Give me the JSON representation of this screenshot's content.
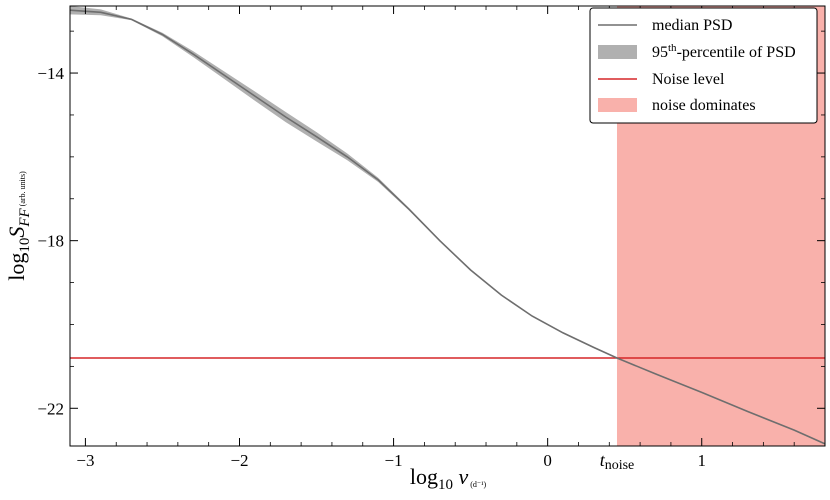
{
  "chart_data": {
    "type": "line",
    "title": "",
    "xlabel": {
      "main": "log",
      "sub": "10",
      "var": "ν",
      "unit": "(d⁻¹)"
    },
    "ylabel": {
      "main": "log",
      "sub": "10",
      "var": "S",
      "var_sub": "FF",
      "unit": "(arb. units)"
    },
    "xlim": [
      -3.1,
      1.8
    ],
    "ylim": [
      -22.9,
      -12.4
    ],
    "x_ticks": [
      {
        "value": -3,
        "label": "−3"
      },
      {
        "value": -2,
        "label": "−2"
      },
      {
        "value": -1,
        "label": "−1"
      },
      {
        "value": 0,
        "label": "0"
      },
      {
        "value": 1,
        "label": "1"
      }
    ],
    "x_special_tick": {
      "value": 0.45,
      "label_main": "t",
      "label_sub": "noise"
    },
    "y_ticks": [
      {
        "value": -14,
        "label": "−14"
      },
      {
        "value": -18,
        "label": "−18"
      },
      {
        "value": -22,
        "label": "−22"
      }
    ],
    "grid": false,
    "legend_position": "top-right",
    "legend": [
      {
        "key": "median",
        "label": "median PSD"
      },
      {
        "key": "percentile",
        "label_main": "95",
        "label_sup": "th",
        "label_rest": "-percentile of PSD"
      },
      {
        "key": "noise_level",
        "label": "Noise level"
      },
      {
        "key": "noise_region",
        "label": "noise dominates"
      }
    ],
    "colors": {
      "median": "#6e6e6e",
      "band": "#b0b0b0",
      "noise_line": "#d62728",
      "noise_region": "#f9b1ab"
    },
    "series": [
      {
        "name": "median PSD",
        "x": [
          -3.1,
          -2.9,
          -2.7,
          -2.5,
          -2.3,
          -2.1,
          -1.9,
          -1.7,
          -1.5,
          -1.3,
          -1.1,
          -0.9,
          -0.7,
          -0.5,
          -0.3,
          -0.1,
          0.1,
          0.3,
          0.45,
          0.7,
          1.0,
          1.3,
          1.6,
          1.8
        ],
        "y": [
          -12.5,
          -12.55,
          -12.72,
          -13.08,
          -13.55,
          -14.05,
          -14.55,
          -15.05,
          -15.52,
          -16.0,
          -16.55,
          -17.25,
          -18.0,
          -18.7,
          -19.3,
          -19.8,
          -20.2,
          -20.55,
          -20.8,
          -21.18,
          -21.62,
          -22.08,
          -22.52,
          -22.85
        ]
      },
      {
        "name": "95th-percentile of PSD",
        "x": [
          -3.1,
          -2.9,
          -2.7,
          -2.5,
          -2.3,
          -2.1,
          -1.9,
          -1.7,
          -1.5,
          -1.3,
          -1.1,
          -0.9,
          -0.7,
          -0.5
        ],
        "y_low": [
          -12.6,
          -12.62,
          -12.74,
          -13.12,
          -13.62,
          -14.14,
          -14.66,
          -15.17,
          -15.63,
          -16.08,
          -16.6,
          -17.28,
          -18.02,
          -18.71
        ],
        "y_high": [
          -12.4,
          -12.48,
          -12.7,
          -13.04,
          -13.48,
          -13.96,
          -14.44,
          -14.93,
          -15.41,
          -15.92,
          -16.5,
          -17.22,
          -17.98,
          -18.69
        ]
      }
    ],
    "noise_level": -20.8,
    "noise_region": [
      0.45,
      1.8
    ]
  }
}
